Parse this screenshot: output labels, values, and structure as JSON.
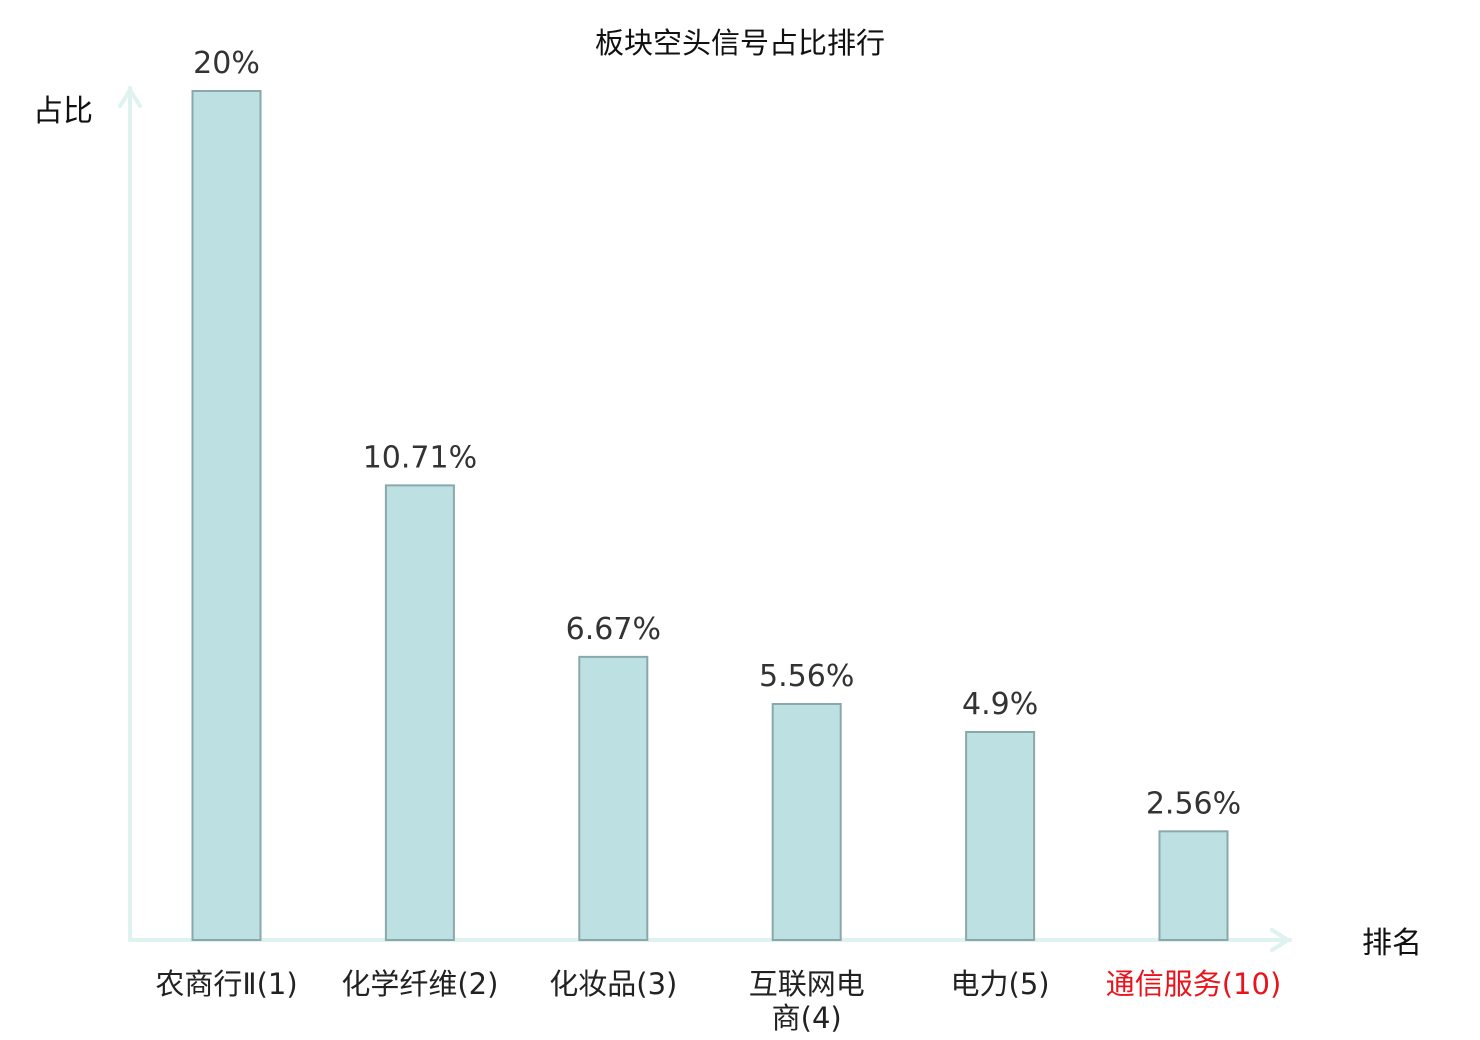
{
  "chart_data": {
    "type": "bar",
    "title": "板块空头信号占比排行",
    "ylabel": "占比",
    "xlabel": "排名",
    "categories": [
      "农商行Ⅱ(1)",
      "化学纤维(2)",
      "化妆品(3)",
      "互联网电商(4)",
      "电力(5)",
      "通信服务(10)"
    ],
    "category_lines": [
      [
        "农商行Ⅱ(1)"
      ],
      [
        "化学纤维(2)"
      ],
      [
        "化妆品(3)"
      ],
      [
        "互联网电",
        "商(4)"
      ],
      [
        "电力(5)"
      ],
      [
        "通信服务(10)"
      ]
    ],
    "values": [
      20,
      10.71,
      6.67,
      5.56,
      4.9,
      2.56
    ],
    "value_labels": [
      "20%",
      "10.71%",
      "6.67%",
      "5.56%",
      "4.9%",
      "2.56%"
    ],
    "highlight_index": 5,
    "ylim": [
      0,
      20
    ],
    "grid": false,
    "legend": "none",
    "colors": {
      "bar_fill": "#bde0e3",
      "bar_stroke": "#8aa8ab",
      "axis": "#def2ef",
      "text": "#222222",
      "value_text": "#333333",
      "highlight": "#e8131b"
    }
  }
}
